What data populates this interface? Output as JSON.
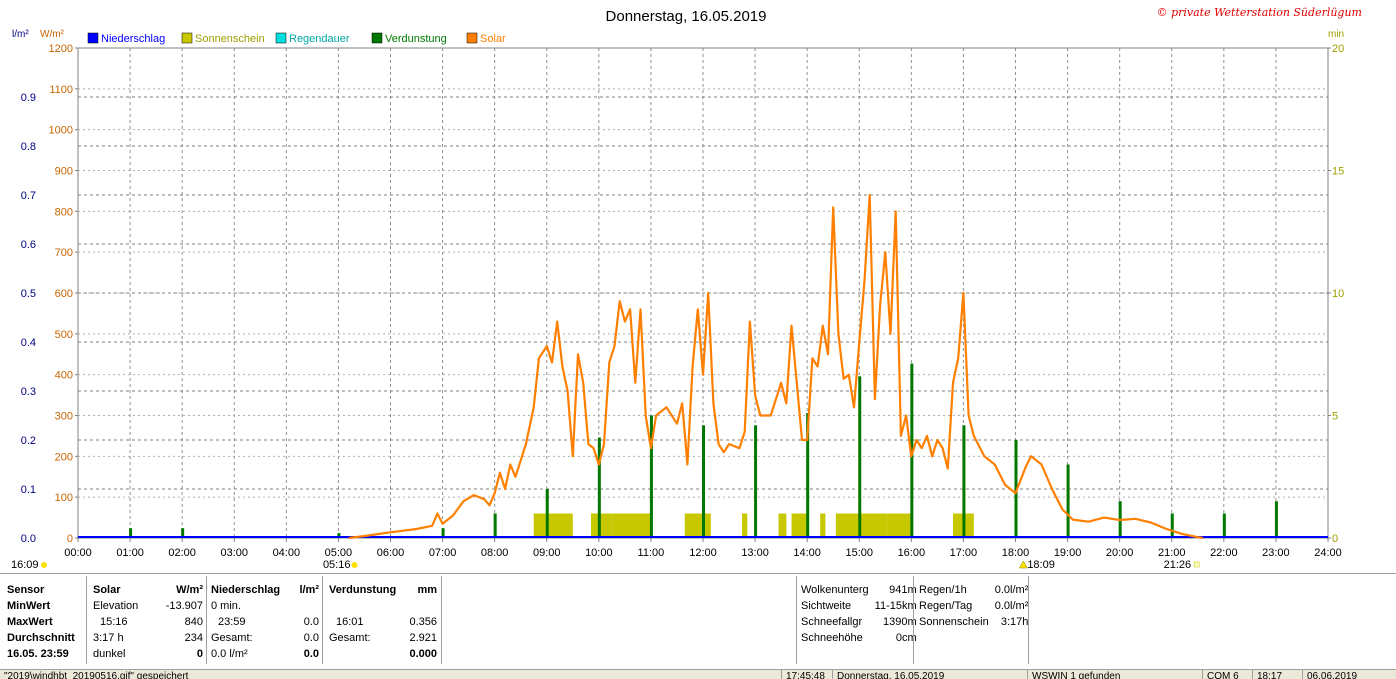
{
  "chart_data": {
    "type": "line",
    "title": "Donnerstag, 16.05.2019",
    "copyright": "© private Wetterstation Süderlügum",
    "left_axis_unit": "l/m²",
    "solar_axis_unit": "W/m²",
    "right_axis_unit": "min",
    "ylim_precip": [
      0,
      1.0
    ],
    "ylim_solar": [
      0,
      1200
    ],
    "ylim_minutes": [
      0,
      20
    ],
    "precip_ticks": [
      "0.0",
      "0.1",
      "0.2",
      "0.3",
      "0.4",
      "0.5",
      "0.6",
      "0.7",
      "0.8",
      "0.9"
    ],
    "solar_ticks": [
      "0",
      "100",
      "200",
      "300",
      "400",
      "500",
      "600",
      "700",
      "800",
      "900",
      "1000",
      "1100",
      "1200"
    ],
    "minute_ticks": [
      "0",
      "5",
      "10",
      "15",
      "20"
    ],
    "x_ticks": [
      "00:00",
      "01:00",
      "02:00",
      "03:00",
      "04:00",
      "05:00",
      "06:00",
      "07:00",
      "08:00",
      "09:00",
      "10:00",
      "11:00",
      "12:00",
      "13:00",
      "14:00",
      "15:00",
      "16:00",
      "17:00",
      "18:00",
      "19:00",
      "20:00",
      "21:00",
      "22:00",
      "23:00",
      "24:00"
    ],
    "grid": true,
    "legend_position": "top-left",
    "legend": [
      {
        "name": "Niederschlag",
        "color": "#0000ff"
      },
      {
        "name": "Sonnenschein",
        "color": "#c8c800"
      },
      {
        "name": "Regendauer",
        "color": "#00e0e0"
      },
      {
        "name": "Verdunstung",
        "color": "#007800"
      },
      {
        "name": "Solar",
        "color": "#ff8000"
      }
    ],
    "colors": {
      "solar": "#ff8000",
      "sunshine": "#c8c800",
      "evaporation": "#007800",
      "precip": "#0000ff",
      "precip_axis": "#000080",
      "solar_axis": "#c86400",
      "minutes_axis": "#a0a000"
    },
    "markers": {
      "sunrise": {
        "label": "05:16",
        "hour": 5.27
      },
      "sunset": {
        "label": "21:26",
        "hour": 21.43
      },
      "left_edge_label": "16:09",
      "peak_label": "18:09",
      "peak_hour": 18.15
    },
    "solar_series": [
      [
        5.2,
        0
      ],
      [
        5.5,
        5
      ],
      [
        6.0,
        14
      ],
      [
        6.5,
        22
      ],
      [
        6.8,
        30
      ],
      [
        6.9,
        60
      ],
      [
        7.0,
        35
      ],
      [
        7.2,
        55
      ],
      [
        7.4,
        90
      ],
      [
        7.6,
        105
      ],
      [
        7.8,
        95
      ],
      [
        7.9,
        80
      ],
      [
        8.0,
        110
      ],
      [
        8.1,
        160
      ],
      [
        8.2,
        120
      ],
      [
        8.3,
        180
      ],
      [
        8.4,
        150
      ],
      [
        8.6,
        230
      ],
      [
        8.75,
        320
      ],
      [
        8.85,
        440
      ],
      [
        9.0,
        470
      ],
      [
        9.1,
        430
      ],
      [
        9.2,
        530
      ],
      [
        9.3,
        420
      ],
      [
        9.4,
        360
      ],
      [
        9.5,
        200
      ],
      [
        9.6,
        450
      ],
      [
        9.7,
        380
      ],
      [
        9.8,
        230
      ],
      [
        9.9,
        220
      ],
      [
        10.0,
        180
      ],
      [
        10.1,
        230
      ],
      [
        10.2,
        430
      ],
      [
        10.3,
        470
      ],
      [
        10.4,
        580
      ],
      [
        10.5,
        530
      ],
      [
        10.6,
        560
      ],
      [
        10.7,
        380
      ],
      [
        10.8,
        560
      ],
      [
        10.9,
        300
      ],
      [
        11.0,
        220
      ],
      [
        11.1,
        300
      ],
      [
        11.3,
        320
      ],
      [
        11.5,
        280
      ],
      [
        11.6,
        330
      ],
      [
        11.7,
        180
      ],
      [
        11.8,
        420
      ],
      [
        11.9,
        560
      ],
      [
        12.0,
        400
      ],
      [
        12.1,
        600
      ],
      [
        12.2,
        330
      ],
      [
        12.3,
        230
      ],
      [
        12.4,
        210
      ],
      [
        12.5,
        230
      ],
      [
        12.7,
        220
      ],
      [
        12.8,
        260
      ],
      [
        12.9,
        530
      ],
      [
        13.0,
        350
      ],
      [
        13.1,
        300
      ],
      [
        13.3,
        300
      ],
      [
        13.5,
        380
      ],
      [
        13.6,
        330
      ],
      [
        13.7,
        520
      ],
      [
        13.8,
        380
      ],
      [
        13.9,
        240
      ],
      [
        14.0,
        240
      ],
      [
        14.1,
        440
      ],
      [
        14.2,
        420
      ],
      [
        14.3,
        520
      ],
      [
        14.4,
        450
      ],
      [
        14.5,
        810
      ],
      [
        14.6,
        500
      ],
      [
        14.7,
        390
      ],
      [
        14.8,
        400
      ],
      [
        14.9,
        320
      ],
      [
        15.0,
        480
      ],
      [
        15.1,
        630
      ],
      [
        15.2,
        840
      ],
      [
        15.3,
        340
      ],
      [
        15.4,
        570
      ],
      [
        15.5,
        700
      ],
      [
        15.6,
        500
      ],
      [
        15.7,
        800
      ],
      [
        15.8,
        250
      ],
      [
        15.9,
        300
      ],
      [
        16.0,
        200
      ],
      [
        16.1,
        240
      ],
      [
        16.2,
        220
      ],
      [
        16.3,
        250
      ],
      [
        16.4,
        200
      ],
      [
        16.5,
        240
      ],
      [
        16.6,
        220
      ],
      [
        16.7,
        170
      ],
      [
        16.8,
        380
      ],
      [
        16.9,
        440
      ],
      [
        17.0,
        600
      ],
      [
        17.1,
        300
      ],
      [
        17.2,
        250
      ],
      [
        17.4,
        200
      ],
      [
        17.6,
        180
      ],
      [
        17.8,
        130
      ],
      [
        18.0,
        110
      ],
      [
        18.2,
        175
      ],
      [
        18.3,
        200
      ],
      [
        18.5,
        180
      ],
      [
        18.7,
        120
      ],
      [
        18.9,
        70
      ],
      [
        19.1,
        45
      ],
      [
        19.4,
        40
      ],
      [
        19.7,
        50
      ],
      [
        20.0,
        44
      ],
      [
        20.3,
        47
      ],
      [
        20.6,
        38
      ],
      [
        20.9,
        22
      ],
      [
        21.2,
        10
      ],
      [
        21.5,
        2
      ],
      [
        21.6,
        0
      ]
    ],
    "sunshine_blocks": [
      [
        8.75,
        9.5
      ],
      [
        9.85,
        10.25
      ],
      [
        10.25,
        11.0
      ],
      [
        11.65,
        12.15
      ],
      [
        12.75,
        12.85
      ],
      [
        13.45,
        13.6
      ],
      [
        13.7,
        14.0
      ],
      [
        14.25,
        14.35
      ],
      [
        14.55,
        15.55
      ],
      [
        15.55,
        16.0
      ],
      [
        16.8,
        17.2
      ]
    ],
    "sunshine_value_min": 1.0,
    "evaporation_bars": [
      [
        1.0,
        0.02
      ],
      [
        2.0,
        0.02
      ],
      [
        5.0,
        0.01
      ],
      [
        7.0,
        0.02
      ],
      [
        8.0,
        0.05
      ],
      [
        9.0,
        0.1
      ],
      [
        10.0,
        0.205
      ],
      [
        11.0,
        0.25
      ],
      [
        12.0,
        0.23
      ],
      [
        13.0,
        0.23
      ],
      [
        14.0,
        0.255
      ],
      [
        15.0,
        0.33
      ],
      [
        16.0,
        0.356
      ],
      [
        17.0,
        0.23
      ],
      [
        18.0,
        0.2
      ],
      [
        19.0,
        0.15
      ],
      [
        20.0,
        0.075
      ],
      [
        21.0,
        0.05
      ],
      [
        22.0,
        0.05
      ],
      [
        23.0,
        0.075
      ]
    ]
  },
  "panel": {
    "sensor": {
      "header": "Sensor",
      "min": "MinWert",
      "max": "MaxWert",
      "avg": "Durchschnitt",
      "date": "16.05. 23:59"
    },
    "solar": {
      "header": "Solar",
      "unit": "W/m²",
      "r1a": "Elevation",
      "r1b": "-13.907",
      "r2a": "15:16",
      "r2b": "840",
      "r3a": "3:17 h",
      "r3b": "234",
      "r4a": "dunkel",
      "r4b": "0"
    },
    "precip": {
      "header": "Niederschlag",
      "unit": "l/m²",
      "r1a": "0 min.",
      "r1b": "",
      "r2a": "23:59",
      "r2b": "0.0",
      "r3a": "Gesamt:",
      "r3b": "0.0",
      "r4a": "0.0 l/m²",
      "r4b": "0.0"
    },
    "evap": {
      "header": "Verdunstung",
      "unit": "mm",
      "r2a": "16:01",
      "r2b": "0.356",
      "r3a": "Gesamt:",
      "r3b": "2.921",
      "r4b": "0.000"
    },
    "cloud": [
      {
        "label": "Wolkenunterg",
        "value": "941m"
      },
      {
        "label": "Sichtweite",
        "value": "11-15km"
      },
      {
        "label": "Schneefallgr",
        "value": "1390m"
      },
      {
        "label": "Schneehöhe",
        "value": "0cm"
      }
    ],
    "rain": [
      {
        "label": "Regen/1h",
        "value": "0.0l/m²"
      },
      {
        "label": "Regen/Tag",
        "value": "0.0l/m²"
      },
      {
        "label": "Sonnenschein",
        "value": "3:17h"
      }
    ]
  },
  "statusbar": {
    "file": "\"2019\\windhbt_20190516.gif\" gespeichert",
    "time1": "17:45:48",
    "date": "Donnerstag, 16.05.2019",
    "found": "WSWIN 1 gefunden",
    "com": "COM 6",
    "time2": "18:17",
    "date2": "06.06.2019"
  }
}
